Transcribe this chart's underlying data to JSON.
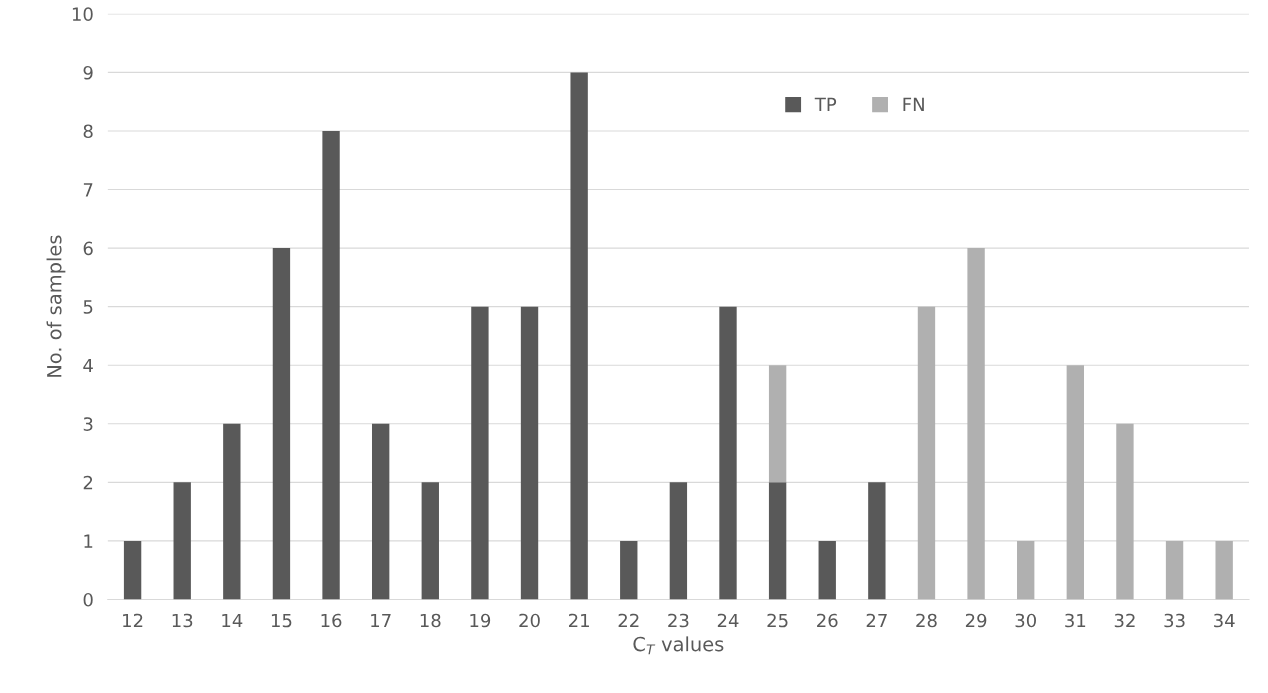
{
  "chart_data": {
    "type": "bar",
    "stacked": true,
    "xlabel": "C$_{T}$ values",
    "ylabel": "No. of samples",
    "categories": [
      "12",
      "13",
      "14",
      "15",
      "16",
      "17",
      "18",
      "19",
      "20",
      "21",
      "22",
      "23",
      "24",
      "25",
      "26",
      "27",
      "28",
      "29",
      "30",
      "31",
      "32",
      "33",
      "34"
    ],
    "series": [
      {
        "name": "TP",
        "color": "#595959",
        "values": [
          1,
          2,
          3,
          6,
          8,
          3,
          2,
          5,
          5,
          9,
          1,
          2,
          5,
          2,
          1,
          2,
          null,
          null,
          null,
          null,
          null,
          null,
          null
        ]
      },
      {
        "name": "FN",
        "color": "#b0b0b0",
        "values": [
          null,
          null,
          null,
          null,
          null,
          null,
          null,
          null,
          null,
          null,
          null,
          null,
          null,
          2,
          null,
          null,
          5,
          6,
          1,
          4,
          3,
          1,
          1
        ]
      }
    ],
    "ylim": [
      0,
      10
    ],
    "yticks": [
      0,
      1,
      2,
      3,
      4,
      5,
      6,
      7,
      8,
      9,
      10
    ],
    "grid": "y",
    "legend": "top right"
  }
}
